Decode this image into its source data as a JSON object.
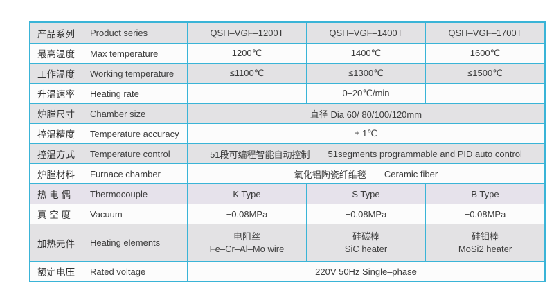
{
  "table": {
    "border_color": "#3ab4d7",
    "gray_row_color": "#e3e2e4",
    "white_row_color": "#fcfcfc",
    "rows": [
      {
        "label_zh": "产品系列",
        "label_en": "Product series",
        "cells": [
          "QSH–VGF–1200T",
          "QSH–VGF–1400T",
          "QSH–VGF–1700T"
        ]
      },
      {
        "label_zh": "最高温度",
        "label_en": "Max temperature",
        "cells": [
          "1200℃",
          "1400℃",
          "1600℃"
        ]
      },
      {
        "label_zh": "工作温度",
        "label_en": "Working temperature",
        "cells": [
          "≤1100℃",
          "≤1300℃",
          "≤1500℃"
        ]
      },
      {
        "label_zh": "升温速率",
        "label_en": "Heating rate",
        "cells": [
          "",
          "0–20℃/min",
          ""
        ]
      },
      {
        "label_zh": "炉膛尺寸",
        "label_en": "Chamber size",
        "merged": "直径 Dia 60/ 80/100/120mm"
      },
      {
        "label_zh": "控温精度",
        "label_en": "Temperature accuracy",
        "merged": "± 1℃"
      },
      {
        "label_zh": "控温方式",
        "label_en": "Temperature control",
        "merged_zh": "51段可编程智能自动控制",
        "merged_en": "51segments programmable and PID auto control"
      },
      {
        "label_zh": "炉膛材料",
        "label_en": "Furnace chamber",
        "merged_zh": "氧化铝陶瓷纤维毯",
        "merged_en": "Ceramic fiber"
      },
      {
        "label_zh": "热 电 偶",
        "label_en": "Thermocouple",
        "cells": [
          "K Type",
          "S Type",
          "B Type"
        ]
      },
      {
        "label_zh": "真 空 度",
        "label_en": "Vacuum",
        "cells": [
          "−0.08MPa",
          "−0.08MPa",
          "−0.08MPa"
        ]
      },
      {
        "label_zh": "加热元件",
        "label_en": "Heating elements",
        "cells_two_line": [
          {
            "line1": "电阻丝",
            "line2": "Fe–Cr–Al–Mo wire"
          },
          {
            "line1": "硅碳棒",
            "line2": "SiC heater"
          },
          {
            "line1": "硅钼棒",
            "line2": "MoSi2 heater"
          }
        ]
      },
      {
        "label_zh": "额定电压",
        "label_en": "Rated voltage",
        "merged": "220V 50Hz Single–phase"
      }
    ]
  }
}
